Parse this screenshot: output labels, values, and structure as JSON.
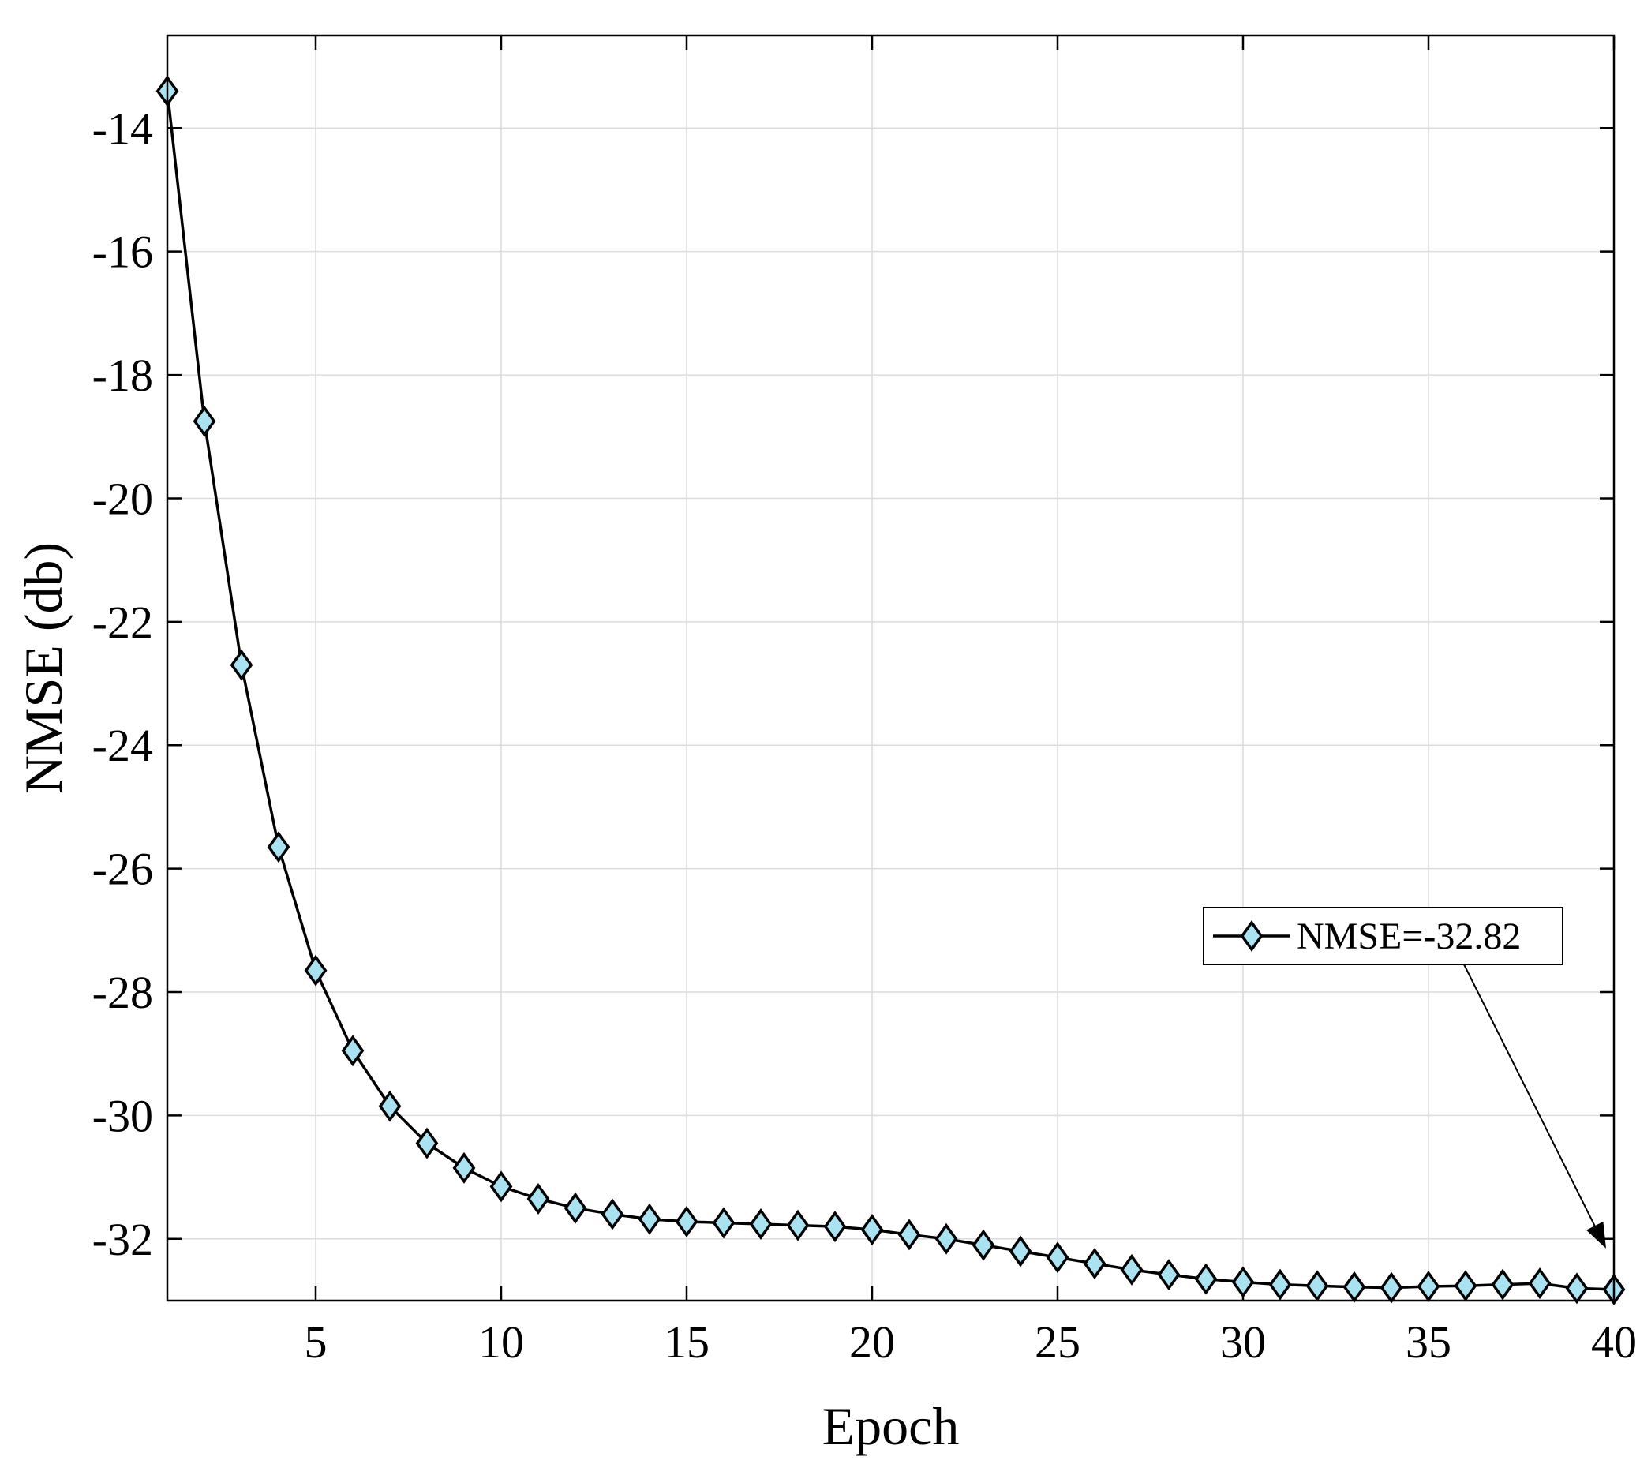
{
  "chart_data": {
    "type": "line",
    "xlabel": "Epoch",
    "ylabel": "NMSE (db)",
    "xlim": [
      1,
      40
    ],
    "ylim": [
      -33,
      -12.5
    ],
    "xticks": [
      5,
      10,
      15,
      20,
      25,
      30,
      35,
      40
    ],
    "yticks": [
      -14,
      -16,
      -18,
      -20,
      -22,
      -24,
      -26,
      -28,
      -30,
      -32
    ],
    "grid": true,
    "marker": "diamond",
    "colors": {
      "line": "#000000",
      "marker_fill": "#a9e2f0"
    },
    "series": [
      {
        "x": [
          1,
          2,
          3,
          4,
          5,
          6,
          7,
          8,
          9,
          10,
          11,
          12,
          13,
          14,
          15,
          16,
          17,
          18,
          19,
          20,
          21,
          22,
          23,
          24,
          25,
          26,
          27,
          28,
          29,
          30,
          31,
          32,
          33,
          34,
          35,
          36,
          37,
          38,
          39,
          40
        ],
        "values": [
          -13.4,
          -18.75,
          -22.7,
          -25.65,
          -27.65,
          -28.95,
          -29.85,
          -30.45,
          -30.85,
          -31.15,
          -31.35,
          -31.5,
          -31.6,
          -31.68,
          -31.72,
          -31.74,
          -31.76,
          -31.78,
          -31.8,
          -31.85,
          -31.93,
          -32.0,
          -32.1,
          -32.2,
          -32.3,
          -32.4,
          -32.5,
          -32.58,
          -32.65,
          -32.7,
          -32.74,
          -32.76,
          -32.78,
          -32.79,
          -32.77,
          -32.76,
          -32.74,
          -32.72,
          -32.8,
          -32.82
        ]
      }
    ],
    "annotation": {
      "text": "NMSE=-32.82",
      "points_to": {
        "x": 40,
        "y": -32.82
      }
    }
  }
}
